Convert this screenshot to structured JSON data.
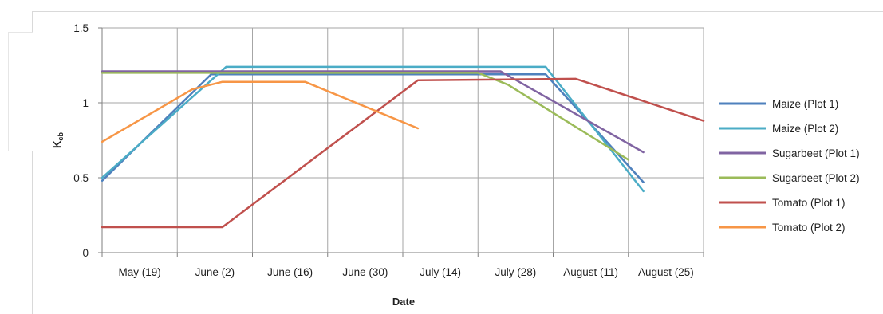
{
  "chart_data": {
    "type": "line",
    "title": "",
    "xlabel": "Date",
    "ylabel": "K",
    "ylabel_subscript": "cb",
    "categories": [
      "May (19)",
      "June (2)",
      "June (16)",
      "June (30)",
      "July (14)",
      "July (28)",
      "August (11)",
      "August (25)"
    ],
    "x_range": [
      0,
      8
    ],
    "ylim": [
      0,
      1.5
    ],
    "y_ticks": [
      0,
      0.5,
      1,
      1.5
    ],
    "y_tick_labels": [
      "0",
      "0.5",
      "1",
      "1.5"
    ],
    "grid": true,
    "legend_position": "right",
    "series": [
      {
        "name": "Maize (Plot 1)",
        "color": "#4f81bd",
        "points": [
          [
            0,
            0.48
          ],
          [
            1.45,
            1.19
          ],
          [
            5.9,
            1.19
          ],
          [
            7.2,
            0.47
          ]
        ]
      },
      {
        "name": "Maize (Plot 2)",
        "color": "#4bacc6",
        "points": [
          [
            0,
            0.5
          ],
          [
            1.65,
            1.24
          ],
          [
            5.9,
            1.24
          ],
          [
            7.2,
            0.41
          ]
        ]
      },
      {
        "name": "Sugarbeet (Plot 1)",
        "color": "#8064a2",
        "points": [
          [
            0,
            1.21
          ],
          [
            5.3,
            1.21
          ],
          [
            7.2,
            0.67
          ]
        ]
      },
      {
        "name": "Sugarbeet (Plot 2)",
        "color": "#9bbb59",
        "points": [
          [
            0,
            1.2
          ],
          [
            5.0,
            1.2
          ],
          [
            5.4,
            1.12
          ],
          [
            7.0,
            0.62
          ]
        ]
      },
      {
        "name": "Tomato (Plot 1)",
        "color": "#c0504d",
        "points": [
          [
            0,
            0.17
          ],
          [
            1.6,
            0.17
          ],
          [
            4.2,
            1.15
          ],
          [
            6.3,
            1.16
          ],
          [
            8.0,
            0.88
          ]
        ]
      },
      {
        "name": "Tomato (Plot 2)",
        "color": "#f79646",
        "points": [
          [
            0,
            0.74
          ],
          [
            1.2,
            1.09
          ],
          [
            1.6,
            1.14
          ],
          [
            2.7,
            1.14
          ],
          [
            4.2,
            0.83
          ]
        ]
      }
    ]
  }
}
